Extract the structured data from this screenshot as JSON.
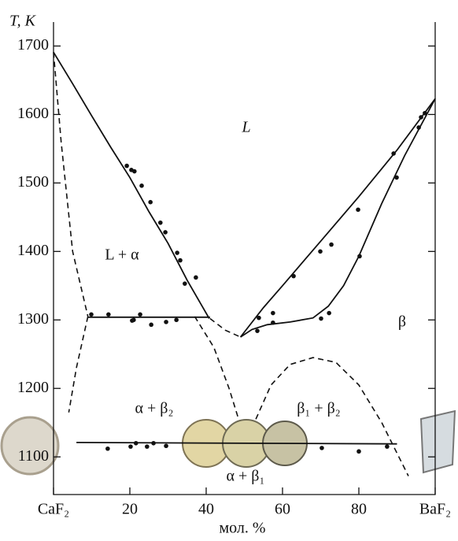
{
  "chart_data": {
    "type": "phase-diagram",
    "y_label": "T, K",
    "x_label": "мол. %",
    "xlim": [
      0,
      100
    ],
    "ylim": [
      1045,
      1735
    ],
    "xticks": [
      {
        "value": 0,
        "label": "CaF₂"
      },
      20,
      40,
      60,
      80,
      {
        "value": 100,
        "label": "BaF₂"
      }
    ],
    "yticks": [
      1100,
      1200,
      1300,
      1400,
      1500,
      1600,
      1700
    ],
    "annotations": [
      "L",
      "L + α",
      "β",
      "α + β₂",
      "β₁ + β₂",
      "α + β₁"
    ],
    "points": {
      "color": "#111",
      "x": [
        19.2,
        20.4,
        21.2,
        23.1,
        25.4,
        28,
        29.3,
        32.4,
        33.2,
        34.4,
        37.3,
        9.9,
        14.4,
        21,
        22.7,
        20.6,
        25.6,
        29.5,
        32.2,
        53.8,
        53.4,
        57.5,
        57.5,
        62.9,
        69.9,
        72.8,
        70.1,
        72.2,
        79.8,
        80.2,
        89.1,
        89.9,
        95.7,
        96.3,
        97.3,
        14.2,
        20.2,
        21.6,
        24.5,
        26.2,
        29.5,
        70.3,
        80,
        87.4
      ],
      "y": [
        1525,
        1519,
        1517,
        1496,
        1472,
        1442,
        1428,
        1398,
        1387,
        1353,
        1362,
        1308,
        1308,
        1300,
        1308,
        1299,
        1293,
        1297,
        1300,
        1303,
        1284,
        1310,
        1296,
        1364,
        1400,
        1410,
        1302,
        1310,
        1461,
        1393,
        1543,
        1508,
        1581,
        1596,
        1602,
        1112,
        1115,
        1120,
        1115,
        1120,
        1116,
        1113,
        1108,
        1115
      ]
    },
    "curves": [
      {
        "style": "solid",
        "x": [
          0,
          5,
          10,
          15,
          20,
          25,
          30,
          35,
          40.8
        ],
        "y": [
          1691,
          1645,
          1598,
          1552,
          1508,
          1458,
          1412,
          1358,
          1302
        ]
      },
      {
        "style": "solid",
        "x": [
          9,
          41
        ],
        "y": [
          1304,
          1304
        ]
      },
      {
        "style": "solid",
        "x": [
          49,
          55,
          60,
          70,
          80,
          90,
          100
        ],
        "y": [
          1275,
          1318,
          1350,
          1415,
          1480,
          1548,
          1623
        ]
      },
      {
        "style": "solid",
        "x": [
          49,
          52,
          56,
          62,
          68,
          72,
          76,
          80,
          86,
          92,
          100
        ],
        "y": [
          1275,
          1286,
          1293,
          1297,
          1303,
          1320,
          1350,
          1393,
          1470,
          1540,
          1623
        ]
      },
      {
        "style": "solid",
        "x": [
          6,
          90
        ],
        "y": [
          1121,
          1119
        ]
      },
      {
        "style": "dashed",
        "x": [
          0,
          2,
          5,
          9
        ],
        "y": [
          1691,
          1560,
          1400,
          1305
        ]
      },
      {
        "style": "dashed",
        "x": [
          9,
          6,
          4
        ],
        "y": [
          1305,
          1230,
          1165
        ]
      },
      {
        "style": "dashed",
        "x": [
          41,
          45,
          49
        ],
        "y": [
          1302,
          1285,
          1275
        ]
      },
      {
        "style": "dashed",
        "x": [
          37,
          42,
          46,
          48.5
        ],
        "y": [
          1305,
          1260,
          1200,
          1155
        ]
      },
      {
        "style": "dashed",
        "x": [
          53,
          57,
          62,
          68,
          74,
          80,
          86,
          93
        ],
        "y": [
          1155,
          1205,
          1235,
          1245,
          1238,
          1205,
          1150,
          1072
        ]
      }
    ]
  }
}
